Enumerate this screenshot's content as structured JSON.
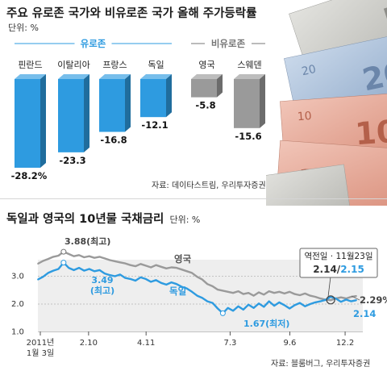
{
  "top_chart": {
    "title": "주요 유로존 국가와 비유로존 국가 올해 주가등락률",
    "unit": "단위: %",
    "source": "자료: 데이타스트림, 우리투자증권",
    "colors": {
      "eurozone": "#2e9be0",
      "non_eurozone": "#9a9a9a",
      "group_label_euro": "#2e9be0",
      "group_label_non": "#777777"
    }
  },
  "bottom_chart": {
    "title": "독일과 영국의 10년물 국채금리",
    "unit": "단위: %",
    "source": "자료: 블룸버그, 우리투자증권",
    "colors": {
      "uk": "#9a9a9a",
      "germany": "#2e9be0"
    },
    "callouts": {
      "uk_max": "3.88(최고)",
      "de_max_value": "3.49",
      "de_max_label": "(최고)",
      "de_min": "1.67(최저)",
      "crossover_title": "역전일 · 11월23일",
      "crossover_uk": "2.14",
      "crossover_sep": "/",
      "crossover_de": "2.15",
      "end_uk": "2.29%",
      "end_de": "2.14"
    }
  },
  "chart_data": [
    {
      "type": "bar",
      "title": "주요 유로존 국가와 비유로존 국가 올해 주가등락률",
      "unit": "%",
      "groups": [
        {
          "name": "유로존",
          "categories": [
            "핀란드",
            "이탈리아",
            "프랑스",
            "독일"
          ],
          "values": [
            -28.2,
            -23.3,
            -16.8,
            -12.1
          ],
          "value_labels": [
            "-28.2%",
            "-23.3",
            "-16.8",
            "-12.1"
          ]
        },
        {
          "name": "비유로존",
          "categories": [
            "영국",
            "스웨덴"
          ],
          "values": [
            -5.8,
            -15.6
          ],
          "value_labels": [
            "-5.8",
            "-15.6"
          ]
        }
      ],
      "ylim": [
        -30,
        0
      ]
    },
    {
      "type": "line",
      "title": "독일과 영국의 10년물 국채금리",
      "unit": "%",
      "x_ticks": [
        "2011년 1월 3일",
        "2.10",
        "4.11",
        "7.3",
        "9.6",
        "12.2"
      ],
      "x_tick_top": [
        "2011년",
        "2.10",
        "4.11",
        "7.3",
        "9.6",
        "12.2"
      ],
      "x_tick_bottom": [
        "1월 3일",
        "",
        "",
        "",
        "",
        ""
      ],
      "y_ticks": [
        "1.0",
        "2.0",
        "3.0"
      ],
      "ylim": [
        1.0,
        4.0
      ],
      "series": [
        {
          "name": "영국",
          "x": [
            0,
            4,
            8,
            12,
            16,
            20,
            24,
            28,
            32,
            36,
            40,
            44,
            48,
            52,
            56,
            60,
            64,
            68,
            72,
            76,
            80,
            84,
            88,
            92,
            96,
            100,
            104,
            108,
            112,
            116,
            120,
            124,
            128,
            132,
            136,
            140,
            144,
            148,
            152,
            156,
            160,
            164,
            168,
            172,
            176,
            180,
            184,
            188,
            192,
            196,
            200,
            204,
            208,
            212,
            216,
            220,
            224,
            228,
            232,
            236,
            240,
            244,
            248
          ],
          "y": [
            3.45,
            3.55,
            3.62,
            3.7,
            3.74,
            3.88,
            3.8,
            3.72,
            3.76,
            3.68,
            3.72,
            3.66,
            3.7,
            3.64,
            3.58,
            3.54,
            3.5,
            3.46,
            3.4,
            3.36,
            3.44,
            3.38,
            3.32,
            3.4,
            3.34,
            3.28,
            3.32,
            3.3,
            3.24,
            3.18,
            3.12,
            2.98,
            2.88,
            2.72,
            2.64,
            2.52,
            2.48,
            2.44,
            2.4,
            2.46,
            2.36,
            2.4,
            2.3,
            2.42,
            2.34,
            2.46,
            2.4,
            2.44,
            2.38,
            2.44,
            2.36,
            2.32,
            2.38,
            2.3,
            2.26,
            2.2,
            2.16,
            2.14,
            2.2,
            2.24,
            2.2,
            2.26,
            2.29
          ]
        },
        {
          "name": "독일",
          "x": [
            0,
            4,
            8,
            12,
            16,
            20,
            24,
            28,
            32,
            36,
            40,
            44,
            48,
            52,
            56,
            60,
            64,
            68,
            72,
            76,
            80,
            84,
            88,
            92,
            96,
            100,
            104,
            108,
            112,
            116,
            120,
            124,
            128,
            132,
            136,
            140,
            144,
            148,
            152,
            156,
            160,
            164,
            168,
            172,
            176,
            180,
            184,
            188,
            192,
            196,
            200,
            204,
            208,
            212,
            216,
            220,
            224,
            228,
            232,
            236,
            240,
            244,
            248
          ],
          "y": [
            2.88,
            2.98,
            3.12,
            3.2,
            3.26,
            3.49,
            3.3,
            3.22,
            3.3,
            3.2,
            3.26,
            3.18,
            3.22,
            3.1,
            3.04,
            3.0,
            3.06,
            2.94,
            2.9,
            2.84,
            2.96,
            2.9,
            2.8,
            2.86,
            2.76,
            2.7,
            2.78,
            2.72,
            2.62,
            2.56,
            2.44,
            2.3,
            2.22,
            2.1,
            2.04,
            1.84,
            1.67,
            1.86,
            1.76,
            1.92,
            1.8,
            1.98,
            1.86,
            2.02,
            1.9,
            2.1,
            1.94,
            2.06,
            1.96,
            1.84,
            1.96,
            2.04,
            1.92,
            2.0,
            2.06,
            2.1,
            2.15,
            2.26,
            2.2,
            2.08,
            2.16,
            2.1,
            2.14
          ]
        }
      ]
    }
  ]
}
